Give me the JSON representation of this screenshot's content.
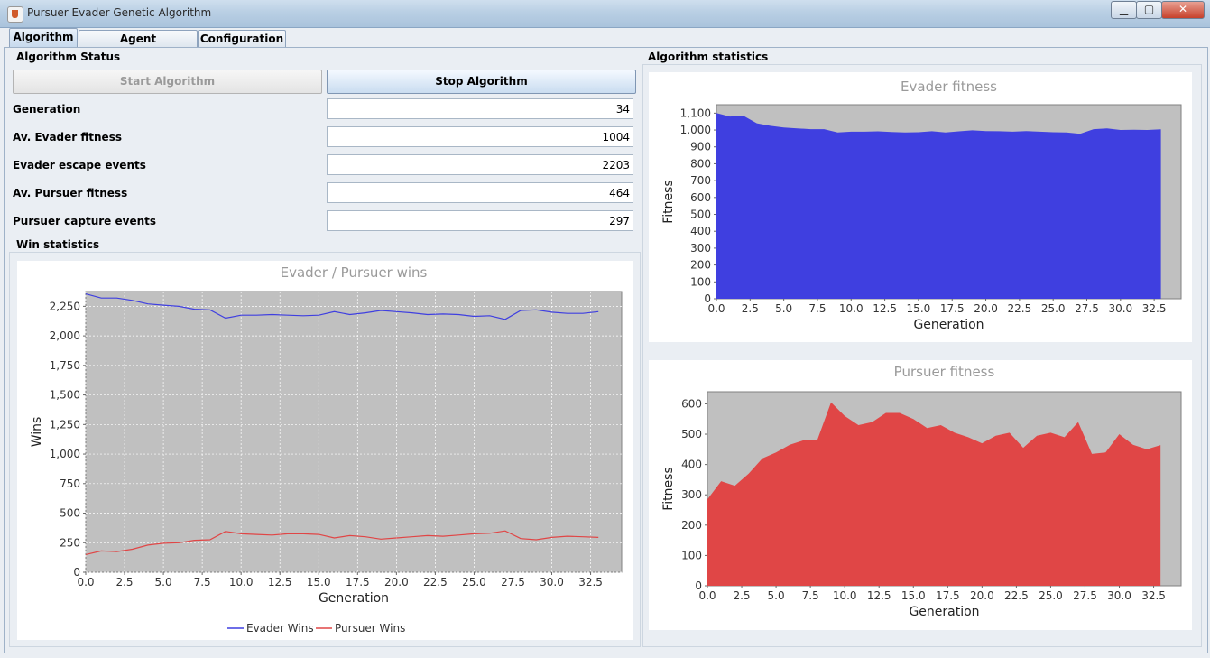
{
  "window": {
    "title": "Pursuer Evader Genetic Algorithm",
    "buttons": {
      "minimize": "▁",
      "maximize": "▢",
      "close": "✕"
    }
  },
  "tabs": [
    {
      "label": "Algorithm",
      "active": true
    },
    {
      "label": "Agent Competitions",
      "active": false
    },
    {
      "label": "Configuration",
      "active": false
    }
  ],
  "status": {
    "group_title": "Algorithm Status",
    "start_button": "Start Algorithm",
    "stop_button": "Stop Algorithm",
    "fields": [
      {
        "label": "Generation",
        "value": "34"
      },
      {
        "label": "Av. Evader fitness",
        "value": "1004"
      },
      {
        "label": "Evader escape events",
        "value": "2203"
      },
      {
        "label": "Av. Pursuer fitness",
        "value": "464"
      },
      {
        "label": "Pursuer capture events",
        "value": "297"
      }
    ]
  },
  "win_group_title": "Win statistics",
  "stats_group_title": "Algorithm statistics",
  "colors": {
    "evader": "#3f3fe0",
    "pursuer": "#e04646",
    "plot_bg": "#c0c0c0"
  },
  "chart_data": [
    {
      "type": "line",
      "title": "Evader / Pursuer wins",
      "xlabel": "Generation",
      "ylabel": "Wins",
      "xlim": [
        0,
        34.5
      ],
      "ylim": [
        0,
        2375
      ],
      "xticks": [
        "0.0",
        "2.5",
        "5.0",
        "7.5",
        "10.0",
        "12.5",
        "15.0",
        "17.5",
        "20.0",
        "22.5",
        "25.0",
        "27.5",
        "30.0",
        "32.5"
      ],
      "yticks": [
        "0",
        "250",
        "500",
        "750",
        "1,000",
        "1,250",
        "1,500",
        "1,750",
        "2,000",
        "2,250"
      ],
      "grid": true,
      "legend": "bottom",
      "x": [
        0,
        1,
        2,
        3,
        4,
        5,
        6,
        7,
        8,
        9,
        10,
        11,
        12,
        13,
        14,
        15,
        16,
        17,
        18,
        19,
        20,
        21,
        22,
        23,
        24,
        25,
        26,
        27,
        28,
        29,
        30,
        31,
        32,
        33
      ],
      "series": [
        {
          "name": "Evader Wins",
          "values": [
            2355,
            2320,
            2320,
            2300,
            2270,
            2260,
            2250,
            2225,
            2220,
            2150,
            2175,
            2175,
            2180,
            2175,
            2170,
            2175,
            2205,
            2180,
            2195,
            2215,
            2205,
            2195,
            2180,
            2185,
            2180,
            2165,
            2170,
            2140,
            2215,
            2220,
            2200,
            2190,
            2190,
            2205
          ]
        },
        {
          "name": "Pursuer Wins",
          "values": [
            150,
            180,
            175,
            195,
            230,
            245,
            250,
            270,
            275,
            345,
            325,
            320,
            315,
            325,
            325,
            320,
            290,
            310,
            300,
            280,
            290,
            300,
            310,
            305,
            315,
            325,
            330,
            350,
            285,
            275,
            295,
            305,
            300,
            295
          ]
        }
      ]
    },
    {
      "type": "area",
      "title": "Evader fitness",
      "xlabel": "Generation",
      "ylabel": "Fitness",
      "xlim": [
        0,
        34.5
      ],
      "ylim": [
        0,
        1150
      ],
      "xticks": [
        "0.0",
        "2.5",
        "5.0",
        "7.5",
        "10.0",
        "12.5",
        "15.0",
        "17.5",
        "20.0",
        "22.5",
        "25.0",
        "27.5",
        "30.0",
        "32.5"
      ],
      "yticks": [
        "0",
        "100",
        "200",
        "300",
        "400",
        "500",
        "600",
        "700",
        "800",
        "900",
        "1,000",
        "1,100"
      ],
      "grid": false,
      "x": [
        0,
        1,
        2,
        3,
        4,
        5,
        6,
        7,
        8,
        9,
        10,
        11,
        12,
        13,
        14,
        15,
        16,
        17,
        18,
        19,
        20,
        21,
        22,
        23,
        24,
        25,
        26,
        27,
        28,
        29,
        30,
        31,
        32,
        33
      ],
      "series": [
        {
          "name": "",
          "values": [
            1100,
            1080,
            1085,
            1040,
            1025,
            1015,
            1010,
            1005,
            1005,
            985,
            990,
            990,
            992,
            988,
            985,
            987,
            993,
            985,
            992,
            998,
            994,
            993,
            990,
            994,
            990,
            987,
            986,
            978,
            1005,
            1010,
            1000,
            1002,
            1000,
            1004
          ]
        }
      ]
    },
    {
      "type": "area",
      "title": "Pursuer fitness",
      "xlabel": "Generation",
      "ylabel": "Fitness",
      "xlim": [
        0,
        34.5
      ],
      "ylim": [
        0,
        640
      ],
      "xticks": [
        "0.0",
        "2.5",
        "5.0",
        "7.5",
        "10.0",
        "12.5",
        "15.0",
        "17.5",
        "20.0",
        "22.5",
        "25.0",
        "27.5",
        "30.0",
        "32.5"
      ],
      "yticks": [
        "0",
        "100",
        "200",
        "300",
        "400",
        "500",
        "600"
      ],
      "grid": false,
      "x": [
        0,
        1,
        2,
        3,
        4,
        5,
        6,
        7,
        8,
        9,
        10,
        11,
        12,
        13,
        14,
        15,
        16,
        17,
        18,
        19,
        20,
        21,
        22,
        23,
        24,
        25,
        26,
        27,
        28,
        29,
        30,
        31,
        32,
        33
      ],
      "series": [
        {
          "name": "",
          "values": [
            285,
            345,
            330,
            370,
            420,
            440,
            465,
            480,
            480,
            605,
            560,
            530,
            540,
            570,
            570,
            550,
            520,
            530,
            505,
            490,
            470,
            495,
            505,
            455,
            495,
            505,
            490,
            540,
            435,
            440,
            500,
            465,
            450,
            464
          ]
        }
      ]
    }
  ]
}
